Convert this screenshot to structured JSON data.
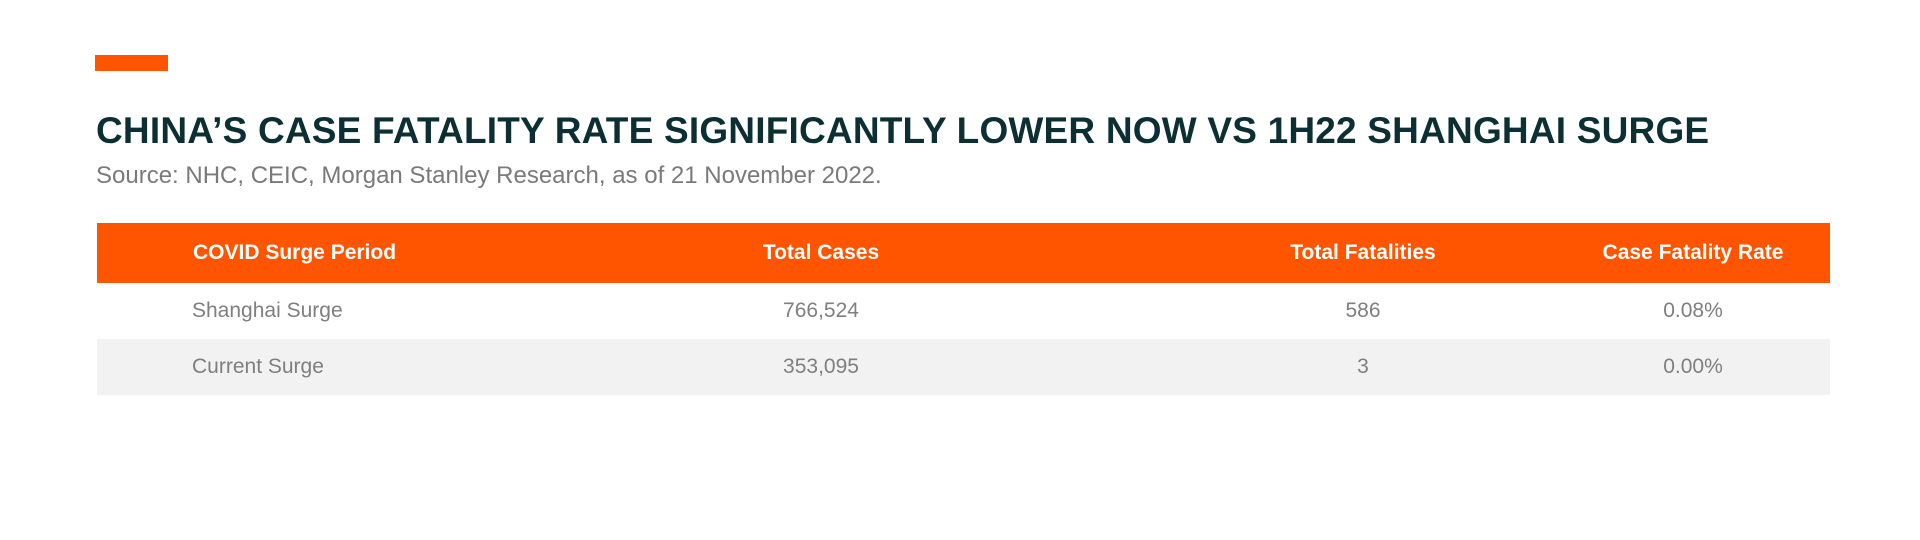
{
  "colors": {
    "accent": "#ff5500",
    "title": "#0b2f33",
    "subtitle": "#7a7a7a",
    "cell_text": "#7f7f7f",
    "row_alt": "#f2f2f2",
    "header_text": "#ffffff"
  },
  "header": {
    "title": "CHINA’S CASE FATALITY RATE SIGNIFICANTLY LOWER NOW VS 1H22 SHANGHAI SURGE",
    "source": "Source: NHC, CEIC, Morgan Stanley Research, as of 21 November 2022."
  },
  "table": {
    "columns": [
      "COVID Surge Period",
      "Total Cases",
      "Total Fatalities",
      "Case Fatality Rate"
    ],
    "rows": [
      [
        "Shanghai Surge",
        "766,524",
        "586",
        "0.08%"
      ],
      [
        "Current Surge",
        "353,095",
        "3",
        "0.00%"
      ]
    ]
  }
}
